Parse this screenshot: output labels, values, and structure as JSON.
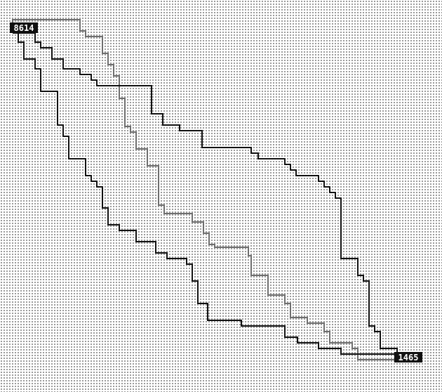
{
  "board": {
    "start_node": {
      "id": "8614"
    },
    "end_node": {
      "id": "1465"
    }
  },
  "colors": {
    "background": "#ffffff",
    "grid_dot": "#9a9a9a",
    "route_primary": "#111111",
    "route_secondary": "#6e6e6e",
    "label_bg": "#111111",
    "label_text": "#ffffff"
  }
}
